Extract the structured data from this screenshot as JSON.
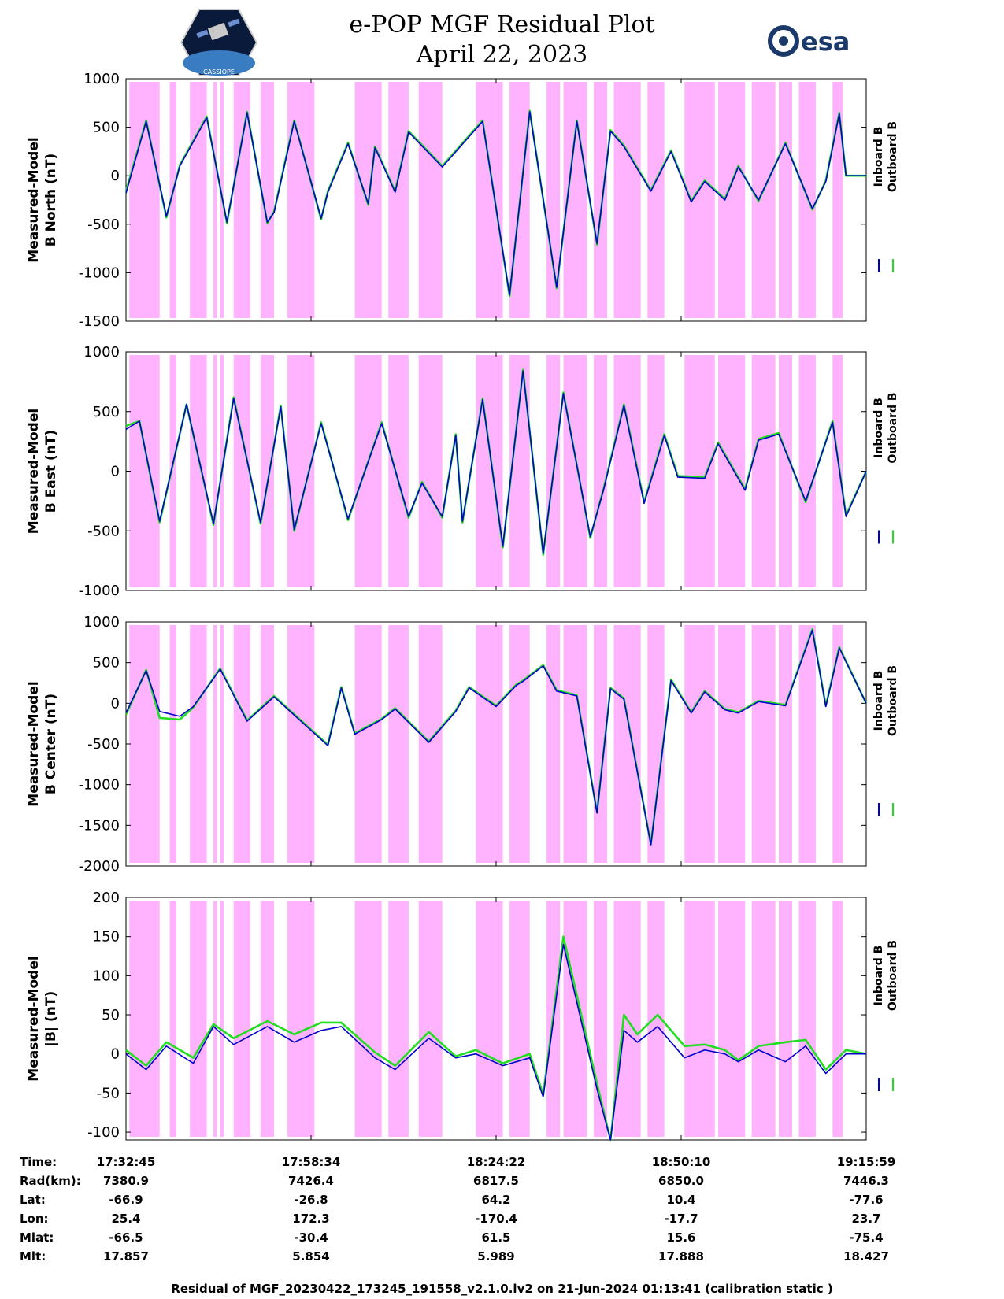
{
  "header": {
    "title_line1": "e-POP MGF Residual Plot",
    "title_line2": "April 22, 2023",
    "logo_left_text": "CASSIOPE",
    "logo_right_text": "esa"
  },
  "colors": {
    "inboard": "#0000cc",
    "outboard": "#22dd22",
    "shade": "#ffb3ff"
  },
  "legend": {
    "inboard": "Inboard B",
    "outboard": "Outboard B"
  },
  "shading_intervals_minutes": [
    [
      0.5,
      5.0
    ],
    [
      6.5,
      7.5
    ],
    [
      9.5,
      12.0
    ],
    [
      13.0,
      13.5
    ],
    [
      14.0,
      14.5
    ],
    [
      16.0,
      18.5
    ],
    [
      20.0,
      22.0
    ],
    [
      24.0,
      28.0
    ],
    [
      34.0,
      38.0
    ],
    [
      39.0,
      42.0
    ],
    [
      43.5,
      47.0
    ],
    [
      52.0,
      56.0
    ],
    [
      57.0,
      60.0
    ],
    [
      62.5,
      64.5
    ],
    [
      65.0,
      68.5
    ],
    [
      69.5,
      71.5
    ],
    [
      72.5,
      76.5
    ],
    [
      77.5,
      80.0
    ],
    [
      83.0,
      87.5
    ],
    [
      88.0,
      92.0
    ],
    [
      93.0,
      96.5
    ],
    [
      97.0,
      99.0
    ],
    [
      100.0,
      102.5
    ],
    [
      105.0,
      106.5
    ]
  ],
  "chart_data": [
    {
      "type": "line",
      "ylabel_line1": "Measured-Model",
      "ylabel_line2": "B North (nT)",
      "ylim": [
        -1500,
        1000
      ],
      "yticks": [
        "1000",
        "500",
        "0",
        "-500",
        "-1000",
        "-1500"
      ],
      "x_minutes": [
        0,
        3,
        6,
        8,
        12,
        15,
        18,
        21,
        22,
        25,
        29,
        30,
        33,
        36,
        37,
        40,
        42,
        47,
        53,
        57,
        60,
        64,
        67,
        70,
        72,
        74,
        78,
        81,
        84,
        86,
        89,
        91,
        94,
        98,
        102,
        104,
        106,
        107,
        110
      ],
      "series": [
        {
          "name": "Inboard B",
          "values": [
            -180,
            560,
            -420,
            100,
            600,
            -480,
            650,
            -480,
            -380,
            560,
            -440,
            -170,
            330,
            -290,
            290,
            -170,
            450,
            90,
            560,
            -1230,
            660,
            -1150,
            560,
            -700,
            460,
            300,
            -160,
            250,
            -270,
            -60,
            -250,
            90,
            -250,
            330,
            -340,
            -60,
            640,
            0,
            0
          ]
        },
        {
          "name": "Outboard B",
          "values": [
            -160,
            570,
            -430,
            110,
            610,
            -490,
            660,
            -490,
            -370,
            570,
            -450,
            -160,
            340,
            -300,
            300,
            -160,
            460,
            100,
            570,
            -1240,
            670,
            -1160,
            570,
            -710,
            470,
            310,
            -150,
            260,
            -260,
            -50,
            -240,
            100,
            -260,
            340,
            -350,
            -50,
            650,
            0,
            0
          ]
        }
      ]
    },
    {
      "type": "line",
      "ylabel_line1": "Measured-Model",
      "ylabel_line2": "B East (nT)",
      "ylim": [
        -1000,
        1000
      ],
      "yticks": [
        "1000",
        "500",
        "0",
        "-500",
        "-1000"
      ],
      "x_minutes": [
        0,
        2,
        5,
        9,
        13,
        16,
        20,
        23,
        25,
        29,
        33,
        38,
        42,
        44,
        47,
        49,
        50,
        53,
        56,
        59,
        62,
        65,
        69,
        71,
        74,
        77,
        80,
        82,
        86,
        88,
        92,
        94,
        97,
        101,
        105,
        107,
        110
      ],
      "series": [
        {
          "name": "Inboard B",
          "values": [
            350,
            420,
            -420,
            560,
            -440,
            610,
            -430,
            540,
            -490,
            400,
            -400,
            400,
            -380,
            -100,
            -380,
            300,
            -420,
            600,
            -630,
            840,
            -690,
            650,
            -550,
            -150,
            550,
            -270,
            300,
            -50,
            -60,
            230,
            -160,
            260,
            310,
            -250,
            410,
            -380,
            0
          ]
        },
        {
          "name": "Outboard B",
          "values": [
            380,
            420,
            -430,
            560,
            -450,
            620,
            -440,
            550,
            -500,
            410,
            -410,
            410,
            -390,
            -90,
            -390,
            310,
            -430,
            610,
            -640,
            850,
            -700,
            660,
            -560,
            -140,
            560,
            -260,
            310,
            -40,
            -50,
            240,
            -150,
            270,
            320,
            -260,
            420,
            -370,
            0
          ]
        }
      ]
    },
    {
      "type": "line",
      "ylabel_line1": "Measured-Model",
      "ylabel_line2": "B Center (nT)",
      "ylim": [
        -2000,
        1000
      ],
      "yticks": [
        "1000",
        "500",
        "0",
        "-500",
        "-1000",
        "-1500",
        "-2000"
      ],
      "x_minutes": [
        0,
        3,
        5,
        8,
        10,
        14,
        18,
        22,
        26,
        30,
        32,
        34,
        38,
        40,
        45,
        49,
        51,
        55,
        58,
        59,
        62,
        64,
        67,
        70,
        72,
        74,
        78,
        81,
        84,
        86,
        89,
        91,
        94,
        98,
        102,
        104,
        106,
        110
      ],
      "series": [
        {
          "name": "Inboard B",
          "values": [
            -120,
            400,
            -100,
            -160,
            -40,
            420,
            -220,
            80,
            -220,
            -520,
            190,
            -380,
            -200,
            -70,
            -480,
            -100,
            190,
            -40,
            220,
            270,
            460,
            150,
            90,
            -1350,
            180,
            50,
            -1740,
            280,
            -120,
            140,
            -80,
            -120,
            20,
            -30,
            900,
            -40,
            680,
            0
          ]
        },
        {
          "name": "Outboard B",
          "values": [
            -140,
            410,
            -180,
            -200,
            -50,
            430,
            -210,
            90,
            -210,
            -510,
            200,
            -370,
            -190,
            -60,
            -470,
            -90,
            200,
            -30,
            230,
            280,
            470,
            160,
            100,
            -1340,
            190,
            60,
            -1730,
            290,
            -110,
            150,
            -70,
            -110,
            30,
            -20,
            910,
            -30,
            690,
            0
          ]
        }
      ]
    },
    {
      "type": "line",
      "ylabel_line1": "Measured-Model",
      "ylabel_line2": "|B| (nT)",
      "ylim": [
        -110,
        200
      ],
      "yticks": [
        "200",
        "150",
        "100",
        "50",
        "0",
        "-50",
        "-100"
      ],
      "x_minutes": [
        0,
        3,
        6,
        10,
        13,
        16,
        21,
        25,
        29,
        32,
        37,
        40,
        45,
        49,
        52,
        56,
        60,
        62,
        65,
        70,
        72,
        74,
        76,
        79,
        83,
        86,
        89,
        91,
        94,
        98,
        101,
        104,
        107,
        110
      ],
      "series": [
        {
          "name": "Inboard B",
          "values": [
            0,
            -20,
            10,
            -12,
            35,
            12,
            35,
            15,
            30,
            35,
            -5,
            -20,
            20,
            -5,
            0,
            -15,
            -5,
            -55,
            140,
            -45,
            -110,
            30,
            15,
            35,
            -5,
            5,
            0,
            -10,
            5,
            -10,
            10,
            -25,
            0,
            0
          ]
        },
        {
          "name": "Outboard B",
          "values": [
            5,
            -15,
            15,
            -5,
            38,
            20,
            42,
            25,
            40,
            40,
            2,
            -15,
            28,
            -3,
            5,
            -12,
            0,
            -52,
            150,
            -38,
            -110,
            50,
            25,
            50,
            10,
            12,
            5,
            -8,
            10,
            15,
            18,
            -20,
            5,
            0
          ]
        }
      ]
    }
  ],
  "x_ticks": [
    "17:32:45",
    "17:58:34",
    "18:24:22",
    "18:50:10",
    "19:15:59"
  ],
  "info_table": {
    "labels": [
      "Time:",
      "Rad(km):",
      "Lat:",
      "Lon:",
      "Mlat:",
      "Mlt:"
    ],
    "columns": [
      [
        "17:32:45",
        "7380.9",
        "-66.9",
        "25.4",
        "-66.5",
        "17.857"
      ],
      [
        "17:58:34",
        "7426.4",
        "-26.8",
        "172.3",
        "-30.4",
        "5.854"
      ],
      [
        "18:24:22",
        "6817.5",
        "64.2",
        "-170.4",
        "61.5",
        "5.989"
      ],
      [
        "18:50:10",
        "6850.0",
        "10.4",
        "-17.7",
        "15.6",
        "17.888"
      ],
      [
        "19:15:59",
        "7446.3",
        "-77.6",
        "23.7",
        "-75.4",
        "18.427"
      ]
    ]
  },
  "footer": "Residual of MGF_20230422_173245_191558_v2.1.0.lv2 on 21-Jun-2024 01:13:41 (calibration static )"
}
